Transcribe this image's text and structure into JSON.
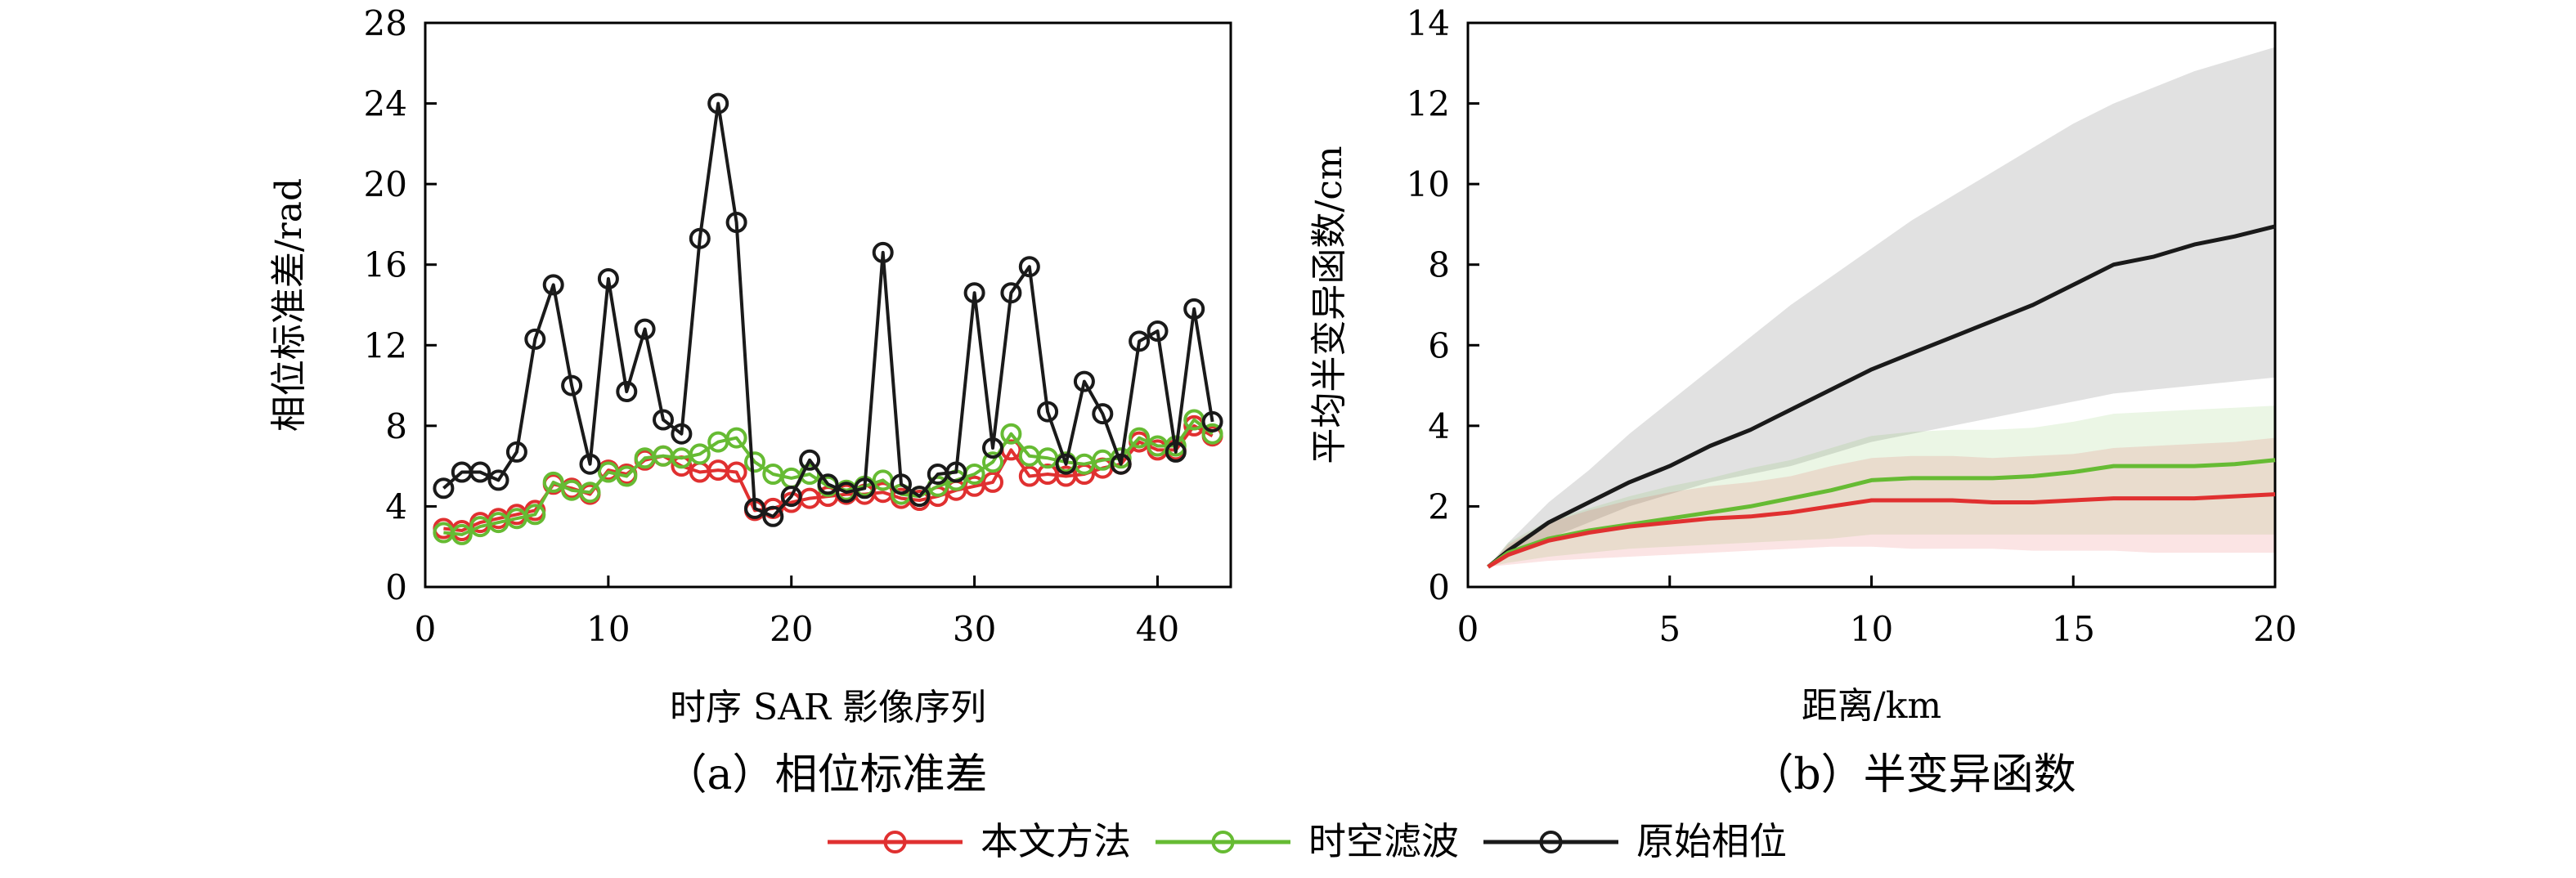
{
  "legend": {
    "position": "bottom-center",
    "entries": [
      {
        "label": "本文方法",
        "color": "#e03030"
      },
      {
        "label": "时空滤波",
        "color": "#66bb33"
      },
      {
        "label": "原始相位",
        "color": "#1a1a1a"
      }
    ]
  },
  "chart_data": [
    {
      "type": "line",
      "caption": "（a）相位标准差",
      "xlabel": "时序 SAR 影像序列",
      "ylabel": "相位标准差/rad",
      "xlim": [
        0,
        44
      ],
      "ylim": [
        0,
        28
      ],
      "xticks": [
        0,
        10,
        20,
        30,
        40
      ],
      "yticks": [
        0,
        4,
        8,
        12,
        16,
        20,
        24,
        28
      ],
      "grid": false,
      "x": [
        1,
        2,
        3,
        4,
        5,
        6,
        7,
        8,
        9,
        10,
        11,
        12,
        13,
        14,
        15,
        16,
        17,
        18,
        19,
        20,
        21,
        22,
        23,
        24,
        25,
        26,
        27,
        28,
        29,
        30,
        31,
        32,
        33,
        34,
        35,
        36,
        37,
        38,
        39,
        40,
        41,
        42,
        43
      ],
      "series": [
        {
          "name": "本文方法",
          "color": "#e03030",
          "values": [
            2.9,
            2.8,
            3.2,
            3.4,
            3.6,
            3.8,
            5.1,
            4.9,
            4.6,
            5.8,
            5.6,
            6.3,
            6.5,
            6.0,
            5.7,
            5.8,
            5.7,
            3.8,
            3.9,
            4.2,
            4.4,
            4.5,
            4.6,
            4.6,
            4.7,
            4.4,
            4.3,
            4.5,
            4.8,
            5.0,
            5.2,
            6.8,
            5.5,
            5.6,
            5.5,
            5.6,
            5.9,
            6.1,
            7.2,
            6.8,
            6.8,
            8.0,
            7.5
          ]
        },
        {
          "name": "时空滤波",
          "color": "#66bb33",
          "values": [
            2.7,
            2.6,
            3.0,
            3.2,
            3.4,
            3.6,
            5.2,
            4.8,
            4.7,
            5.7,
            5.5,
            6.4,
            6.5,
            6.4,
            6.6,
            7.2,
            7.4,
            6.2,
            5.6,
            5.4,
            5.6,
            5.0,
            4.8,
            5.0,
            5.3,
            4.6,
            4.5,
            5.0,
            5.3,
            5.6,
            6.2,
            7.6,
            6.5,
            6.4,
            6.2,
            6.1,
            6.3,
            6.4,
            7.4,
            7.0,
            7.0,
            8.3,
            7.6
          ]
        },
        {
          "name": "原始相位",
          "color": "#1a1a1a",
          "values": [
            4.9,
            5.7,
            5.7,
            5.3,
            6.7,
            12.3,
            15.0,
            10.0,
            6.1,
            15.3,
            9.7,
            12.8,
            8.3,
            7.6,
            17.3,
            24.0,
            18.1,
            3.9,
            3.5,
            4.5,
            6.3,
            5.1,
            4.7,
            4.9,
            16.6,
            5.1,
            4.5,
            5.6,
            5.7,
            14.6,
            6.9,
            14.6,
            15.9,
            8.7,
            6.1,
            10.2,
            8.6,
            6.1,
            12.2,
            12.7,
            6.7,
            13.8,
            8.2
          ]
        }
      ]
    },
    {
      "type": "line",
      "caption": "（b）半变异函数",
      "xlabel": "距离/km",
      "ylabel": "平均半变异函数/cm",
      "xlim": [
        0,
        20
      ],
      "ylim": [
        0,
        14
      ],
      "xticks": [
        0,
        5,
        10,
        15,
        20
      ],
      "yticks": [
        0,
        2,
        4,
        6,
        8,
        10,
        12,
        14
      ],
      "grid": false,
      "x": [
        0.5,
        1,
        2,
        3,
        4,
        5,
        6,
        7,
        8,
        9,
        10,
        11,
        12,
        13,
        14,
        15,
        16,
        17,
        18,
        19,
        20
      ],
      "series": [
        {
          "name": "原始相位",
          "color": "#1a1a1a",
          "values": [
            0.5,
            0.9,
            1.6,
            2.1,
            2.6,
            3.0,
            3.5,
            3.9,
            4.4,
            4.9,
            5.4,
            5.8,
            6.2,
            6.6,
            7.0,
            7.5,
            8.0,
            8.2,
            8.5,
            8.7,
            8.95
          ],
          "band_lower": [
            0.5,
            0.8,
            1.2,
            1.6,
            2.0,
            2.3,
            2.6,
            2.8,
            3.0,
            3.3,
            3.6,
            3.8,
            4.0,
            4.2,
            4.4,
            4.6,
            4.8,
            4.9,
            5.0,
            5.1,
            5.2
          ],
          "band_upper": [
            0.5,
            1.1,
            2.1,
            2.9,
            3.8,
            4.6,
            5.4,
            6.2,
            7.0,
            7.7,
            8.4,
            9.1,
            9.7,
            10.3,
            10.9,
            11.5,
            12.0,
            12.4,
            12.8,
            13.1,
            13.4
          ]
        },
        {
          "name": "时空滤波",
          "color": "#66bb33",
          "values": [
            0.5,
            0.85,
            1.2,
            1.4,
            1.55,
            1.7,
            1.85,
            2.0,
            2.2,
            2.4,
            2.65,
            2.7,
            2.7,
            2.7,
            2.75,
            2.85,
            3.0,
            3.0,
            3.0,
            3.05,
            3.15
          ],
          "band_lower": [
            0.5,
            0.6,
            0.75,
            0.85,
            0.95,
            1.0,
            1.05,
            1.1,
            1.15,
            1.2,
            1.3,
            1.3,
            1.3,
            1.3,
            1.3,
            1.3,
            1.3,
            1.3,
            1.3,
            1.3,
            1.3
          ],
          "band_upper": [
            0.5,
            1.1,
            1.65,
            1.95,
            2.25,
            2.5,
            2.7,
            2.95,
            3.15,
            3.45,
            3.75,
            3.85,
            3.9,
            3.9,
            3.95,
            4.1,
            4.3,
            4.35,
            4.4,
            4.45,
            4.5
          ]
        },
        {
          "name": "本文方法",
          "color": "#e03030",
          "values": [
            0.5,
            0.8,
            1.15,
            1.35,
            1.5,
            1.6,
            1.7,
            1.75,
            1.85,
            2.0,
            2.15,
            2.15,
            2.15,
            2.1,
            2.1,
            2.15,
            2.2,
            2.2,
            2.2,
            2.25,
            2.3
          ],
          "band_lower": [
            0.5,
            0.55,
            0.65,
            0.7,
            0.75,
            0.8,
            0.85,
            0.9,
            0.95,
            1.0,
            1.0,
            0.95,
            0.95,
            0.95,
            0.9,
            0.9,
            0.9,
            0.85,
            0.85,
            0.85,
            0.85
          ],
          "band_upper": [
            0.5,
            1.05,
            1.6,
            1.9,
            2.15,
            2.35,
            2.5,
            2.6,
            2.75,
            3.0,
            3.2,
            3.25,
            3.25,
            3.2,
            3.25,
            3.3,
            3.45,
            3.5,
            3.55,
            3.6,
            3.7
          ]
        }
      ]
    }
  ]
}
